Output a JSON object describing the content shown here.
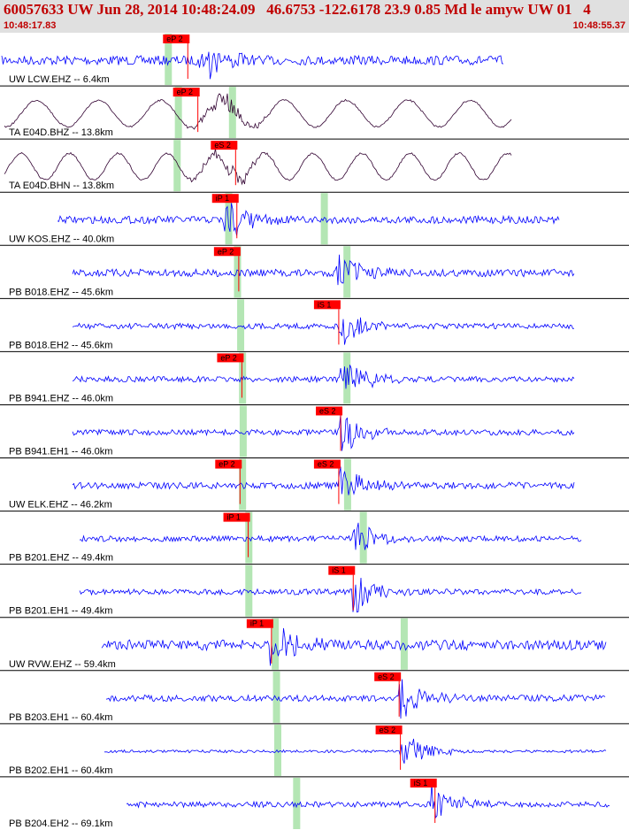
{
  "header": {
    "title": "60057633 UW Jun 28, 2014 10:48:24.09   46.6753 -122.6178 23.9 0.85 Md le amyw UW 01   4",
    "start_time": "10:48:17.83",
    "end_time": "10:48:55.37"
  },
  "colors": {
    "trace_blue": "#0000ff",
    "trace_dark": "#300030",
    "pick_red": "#ff0000",
    "window_green": "#b4e6b4",
    "header_bg": "#e0e0e0",
    "title_red": "#c00000"
  },
  "traces": [
    {
      "label": "UW LCW.EHZ -- 6.4km",
      "style": "blue",
      "picks": [
        {
          "text": "eP 2",
          "t": 0.262
        }
      ],
      "arrival": 0.32,
      "windows": [
        0.262
      ],
      "amp": 0.5
    },
    {
      "label": "TA E04D.BHZ -- 13.8km",
      "style": "dark",
      "picks": [
        {
          "text": "eP 2",
          "t": 0.278
        }
      ],
      "arrival": 0.36,
      "windows": [
        0.278,
        0.364
      ],
      "amp": 0.8
    },
    {
      "label": "TA E04D.BHN -- 13.8km",
      "style": "dark",
      "picks": [
        {
          "text": "eS 2",
          "t": 0.338
        }
      ],
      "arrival": 0.37,
      "windows": [
        0.276
      ],
      "amp": 0.5
    },
    {
      "label": "UW KOS.EHZ -- 40.0km",
      "style": "blue",
      "picks": [
        {
          "text": "iP 1",
          "t": 0.34
        }
      ],
      "arrival": 0.36,
      "windows": [
        0.358,
        0.51
      ],
      "amp": 0.4
    },
    {
      "label": "PB B018.EHZ -- 45.6km",
      "style": "blue",
      "picks": [
        {
          "text": "eP 2",
          "t": 0.343
        }
      ],
      "arrival": 0.54,
      "windows": [
        0.372,
        0.546
      ],
      "amp": 0.4
    },
    {
      "label": "PB B018.EH2 -- 45.6km",
      "style": "blue",
      "picks": [
        {
          "text": "iS 1",
          "t": 0.502
        }
      ],
      "arrival": 0.545,
      "windows": [
        0.377
      ],
      "amp": 0.3
    },
    {
      "label": "PB B941.EHZ -- 46.0km",
      "style": "blue",
      "picks": [
        {
          "text": "eP 2",
          "t": 0.348
        }
      ],
      "arrival": 0.545,
      "windows": [
        0.38,
        0.546
      ],
      "amp": 0.3
    },
    {
      "label": "PB B941.EH1 -- 46.0km",
      "style": "blue",
      "picks": [
        {
          "text": "eS 2",
          "t": 0.505
        }
      ],
      "arrival": 0.545,
      "windows": [
        0.381
      ],
      "amp": 0.3
    },
    {
      "label": "UW ELK.EHZ -- 46.2km",
      "style": "blue",
      "picks": [
        {
          "text": "eP 2",
          "t": 0.345
        },
        {
          "text": "eS 2",
          "t": 0.502
        }
      ],
      "arrival": 0.545,
      "windows": [
        0.38,
        0.547
      ],
      "amp": 0.35
    },
    {
      "label": "PB B201.EHZ -- 49.4km",
      "style": "blue",
      "picks": [
        {
          "text": "iP 1",
          "t": 0.358
        }
      ],
      "arrival": 0.565,
      "windows": [
        0.39,
        0.572
      ],
      "amp": 0.3
    },
    {
      "label": "PB B201.EH1 -- 49.4km",
      "style": "blue",
      "picks": [
        {
          "text": "iS 1",
          "t": 0.525
        }
      ],
      "arrival": 0.565,
      "windows": [
        0.39
      ],
      "amp": 0.3
    },
    {
      "label": "UW RVW.EHZ -- 59.4km",
      "style": "blue",
      "picks": [
        {
          "text": "iP 1",
          "t": 0.395
        }
      ],
      "arrival": 0.435,
      "windows": [
        0.432,
        0.637
      ],
      "amp": 0.55
    },
    {
      "label": "PB B203.EH1 -- 60.4km",
      "style": "blue",
      "picks": [
        {
          "text": "eS 2",
          "t": 0.598
        }
      ],
      "arrival": 0.64,
      "windows": [
        0.434
      ],
      "amp": 0.35
    },
    {
      "label": "PB B202.EH1 -- 60.4km",
      "style": "blue",
      "picks": [
        {
          "text": "eS 2",
          "t": 0.6
        }
      ],
      "arrival": 0.64,
      "windows": [
        0.436
      ],
      "amp": 0.15
    },
    {
      "label": "PB B204.EH2 -- 69.1km",
      "style": "blue",
      "picks": [
        {
          "text": "iS 1",
          "t": 0.655
        }
      ],
      "arrival": 0.69,
      "windows": [
        0.466
      ],
      "amp": 0.3
    }
  ]
}
